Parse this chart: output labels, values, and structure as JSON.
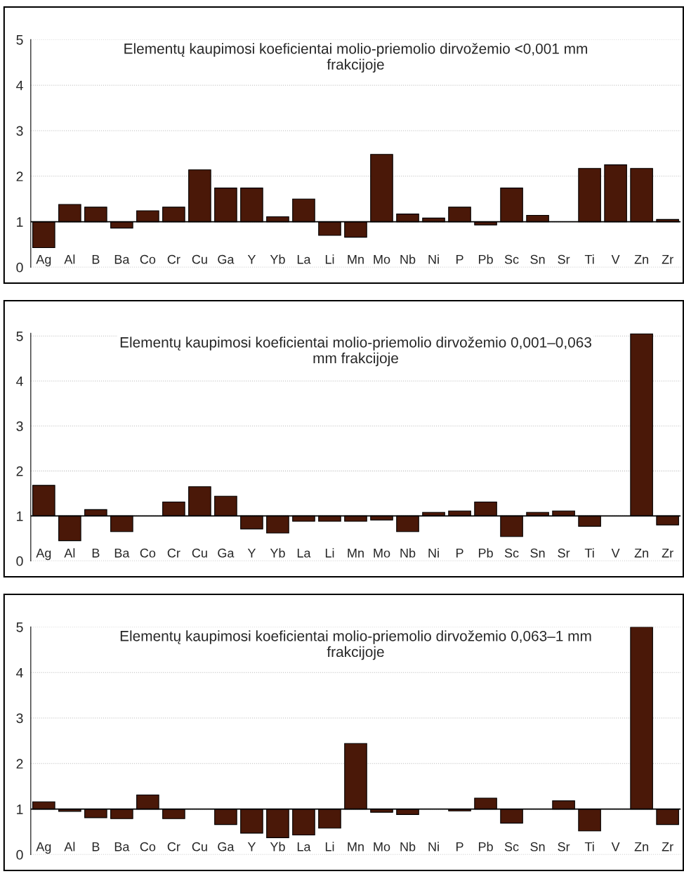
{
  "chart_data": [
    {
      "type": "bar",
      "title": "Elementų kaupimosi koeficientai molio-priemolio dirvožemio <0,001 mm frakcijoje",
      "categories": [
        "Ag",
        "Al",
        "B",
        "Ba",
        "Co",
        "Cr",
        "Cu",
        "Ga",
        "Y",
        "Yb",
        "La",
        "Li",
        "Mn",
        "Mo",
        "Nb",
        "Ni",
        "P",
        "Pb",
        "Sc",
        "Sn",
        "Sr",
        "Ti",
        "V",
        "Zn",
        "Zr"
      ],
      "base": [
        1,
        1,
        1,
        1,
        1,
        1,
        1,
        1,
        1,
        1,
        1,
        1,
        1,
        1,
        1,
        1,
        1,
        1,
        1,
        1,
        null,
        1,
        1,
        1,
        1
      ],
      "ref_lines": [
        {
          "axis": "y",
          "value": 1,
          "color": "#000000"
        }
      ],
      "values": [
        -0.57,
        0.38,
        0.32,
        -0.14,
        0.24,
        0.32,
        1.14,
        0.74,
        0.74,
        0.11,
        0.5,
        -0.3,
        -0.34,
        1.48,
        0.17,
        0.08,
        0.32,
        -0.07,
        0.74,
        0.14,
        null,
        1.17,
        1.25,
        1.17,
        0.05
      ],
      "color": "#4a1808",
      "ylim": [
        0,
        5
      ],
      "yticks": [
        0,
        1,
        2,
        3,
        4,
        5
      ],
      "grid": "y"
    },
    {
      "type": "bar",
      "title": "Elementų kaupimosi koeficientai molio-priemolio dirvožemio 0,001–0,063 mm frakcijoje",
      "categories": [
        "Ag",
        "Al",
        "B",
        "Ba",
        "Co",
        "Cr",
        "Cu",
        "Ga",
        "Y",
        "Yb",
        "La",
        "Li",
        "Mn",
        "Mo",
        "Nb",
        "Ni",
        "P",
        "Pb",
        "Sc",
        "Sn",
        "Sr",
        "Ti",
        "V",
        "Zn",
        "Zr"
      ],
      "base": [
        1,
        1,
        1,
        1,
        null,
        1,
        1,
        1,
        1,
        1,
        1,
        1,
        1,
        1,
        1,
        1,
        1,
        1,
        1,
        1,
        1,
        1,
        null,
        1,
        1
      ],
      "ref_lines": [
        {
          "axis": "y",
          "value": 1,
          "color": "#000000"
        }
      ],
      "values": [
        0.68,
        -0.55,
        0.14,
        -0.35,
        null,
        0.31,
        0.65,
        0.44,
        -0.29,
        -0.38,
        -0.12,
        -0.12,
        -0.12,
        -0.09,
        -0.35,
        0.08,
        0.11,
        0.31,
        -0.46,
        0.08,
        0.11,
        -0.23,
        null,
        4.05,
        -0.2
      ],
      "color": "#4a1808",
      "ylim": [
        0,
        5.06
      ],
      "yticks": [
        0,
        1,
        2,
        3,
        4,
        5
      ],
      "grid": "y"
    },
    {
      "type": "bar",
      "title": "Elementų kaupimosi koeficientai molio-priemolio dirvožemio 0,063–1 mm frakcijoje",
      "categories": [
        "Ag",
        "Al",
        "B",
        "Ba",
        "Co",
        "Cr",
        "Cu",
        "Ga",
        "Y",
        "Yb",
        "La",
        "Li",
        "Mn",
        "Mo",
        "Nb",
        "Ni",
        "P",
        "Pb",
        "Sc",
        "Sn",
        "Sr",
        "Ti",
        "V",
        "Zn",
        "Zr"
      ],
      "base": [
        1,
        1,
        1,
        1,
        1,
        1,
        null,
        1,
        1,
        1,
        1,
        1,
        1,
        1,
        1,
        null,
        1,
        1,
        1,
        null,
        1,
        1,
        null,
        1,
        1
      ],
      "ref_lines": [
        {
          "axis": "y",
          "value": 1,
          "color": "#000000"
        }
      ],
      "values": [
        0.16,
        -0.05,
        -0.19,
        -0.21,
        0.31,
        -0.21,
        null,
        -0.34,
        -0.53,
        -0.63,
        -0.57,
        -0.42,
        1.44,
        -0.07,
        -0.12,
        null,
        -0.04,
        0.24,
        -0.31,
        null,
        0.18,
        -0.48,
        null,
        4.0,
        -0.34
      ],
      "color": "#4a1808",
      "ylim": [
        0,
        5
      ],
      "yticks": [
        0,
        1,
        2,
        3,
        4,
        5
      ],
      "grid": "y"
    }
  ]
}
